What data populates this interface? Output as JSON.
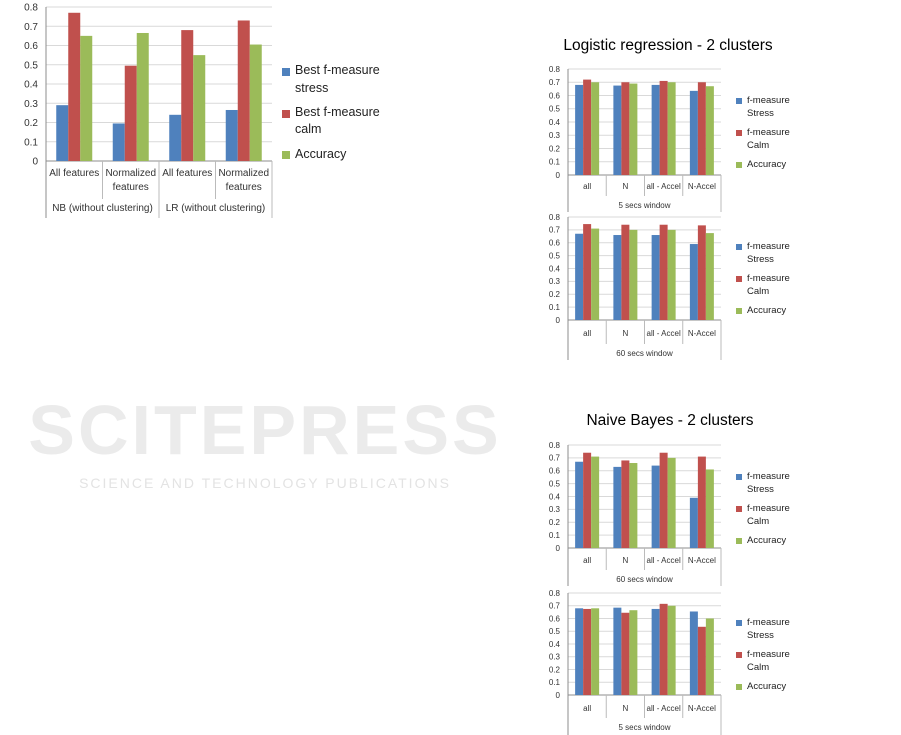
{
  "watermark": {
    "line1": "SCITEPRESS",
    "line2": "SCIENCE AND TECHNOLOGY PUBLICATIONS"
  },
  "colors": {
    "stress": "#4f81bd",
    "calm": "#c0504d",
    "accuracy": "#9bbb59",
    "grid": "#d9d9d9",
    "axis": "#8c8c8c"
  },
  "titles": {
    "lr": "Logistic regression - 2 clusters",
    "nb": "Naive Bayes - 2 clusters"
  },
  "chart_data": [
    {
      "type": "bar",
      "title": "",
      "ylim": [
        0,
        0.8
      ],
      "yticks": [
        "0",
        "0.1",
        "0.2",
        "0.3",
        "0.4",
        "0.5",
        "0.6",
        "0.7",
        "0.8"
      ],
      "grid": true,
      "legend": "right",
      "categories": [
        "All features",
        "Normalized features",
        "All features",
        "Normalized features"
      ],
      "groups": [
        {
          "label": "NB (without clustering)",
          "span": 2
        },
        {
          "label": "LR (without clustering)",
          "span": 2
        }
      ],
      "series": [
        {
          "name": "Best f-measure stress",
          "values": [
            0.29,
            0.195,
            0.24,
            0.265
          ]
        },
        {
          "name": "Best f-measure calm",
          "values": [
            0.77,
            0.495,
            0.68,
            0.73
          ]
        },
        {
          "name": "Accuracy",
          "values": [
            0.65,
            0.665,
            0.55,
            0.605
          ]
        }
      ]
    },
    {
      "type": "bar",
      "title": "Logistic regression - 2 clusters",
      "ylim": [
        0,
        0.8
      ],
      "yticks": [
        "0",
        "0.1",
        "0.2",
        "0.3",
        "0.4",
        "0.5",
        "0.6",
        "0.7",
        "0.8"
      ],
      "grid": true,
      "legend": "right",
      "categories": [
        "all",
        "N",
        "all - Accel",
        "N-Accel"
      ],
      "groups": [
        {
          "label": "5 secs window",
          "span": 4
        }
      ],
      "series": [
        {
          "name": "f-measure Stress",
          "values": [
            0.68,
            0.675,
            0.68,
            0.635
          ]
        },
        {
          "name": "f-measure Calm",
          "values": [
            0.72,
            0.7,
            0.71,
            0.7
          ]
        },
        {
          "name": "Accuracy",
          "values": [
            0.7,
            0.69,
            0.7,
            0.67
          ]
        }
      ]
    },
    {
      "type": "bar",
      "title": "Logistic regression - 2 clusters",
      "ylim": [
        0,
        0.8
      ],
      "yticks": [
        "0",
        "0.1",
        "0.2",
        "0.3",
        "0.4",
        "0.5",
        "0.6",
        "0.7",
        "0.8"
      ],
      "grid": true,
      "legend": "right",
      "categories": [
        "all",
        "N",
        "all - Accel",
        "N-Accel"
      ],
      "groups": [
        {
          "label": "60 secs window",
          "span": 4
        }
      ],
      "series": [
        {
          "name": "f-measure Stress",
          "values": [
            0.67,
            0.66,
            0.66,
            0.59
          ]
        },
        {
          "name": "f-measure Calm",
          "values": [
            0.745,
            0.74,
            0.74,
            0.735
          ]
        },
        {
          "name": "Accuracy",
          "values": [
            0.71,
            0.7,
            0.7,
            0.675
          ]
        }
      ]
    },
    {
      "type": "bar",
      "title": "Naive Bayes - 2 clusters",
      "ylim": [
        0,
        0.8
      ],
      "yticks": [
        "0",
        "0.1",
        "0.2",
        "0.3",
        "0.4",
        "0.5",
        "0.6",
        "0.7",
        "0.8"
      ],
      "grid": true,
      "legend": "right",
      "categories": [
        "all",
        "N",
        "all - Accel",
        "N-Accel"
      ],
      "groups": [
        {
          "label": "60 secs window",
          "span": 4
        }
      ],
      "series": [
        {
          "name": "f-measure Stress",
          "values": [
            0.67,
            0.63,
            0.64,
            0.39
          ]
        },
        {
          "name": "f-measure Calm",
          "values": [
            0.74,
            0.68,
            0.74,
            0.71
          ]
        },
        {
          "name": "Accuracy",
          "values": [
            0.71,
            0.66,
            0.7,
            0.61
          ]
        }
      ]
    },
    {
      "type": "bar",
      "title": "Naive Bayes - 2 clusters",
      "ylim": [
        0,
        0.8
      ],
      "yticks": [
        "0",
        "0.1",
        "0.2",
        "0.3",
        "0.4",
        "0.5",
        "0.6",
        "0.7",
        "0.8"
      ],
      "grid": true,
      "legend": "right",
      "categories": [
        "all",
        "N",
        "all - Accel",
        "N-Accel"
      ],
      "groups": [
        {
          "label": "5 secs window",
          "span": 4
        }
      ],
      "series": [
        {
          "name": "f-measure Stress",
          "values": [
            0.68,
            0.685,
            0.675,
            0.655
          ]
        },
        {
          "name": "f-measure Calm",
          "values": [
            0.675,
            0.645,
            0.715,
            0.535
          ]
        },
        {
          "name": "Accuracy",
          "values": [
            0.68,
            0.665,
            0.7,
            0.6
          ]
        }
      ]
    }
  ]
}
